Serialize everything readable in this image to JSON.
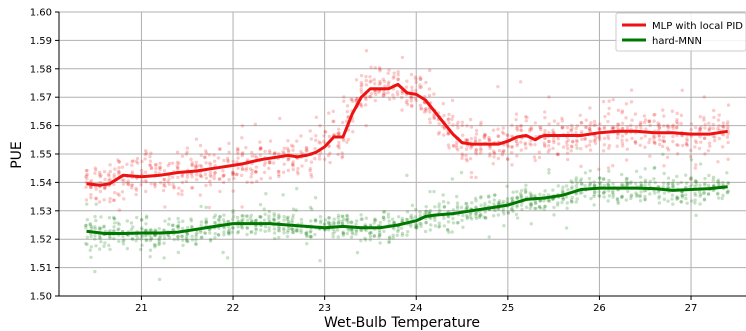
{
  "chart_data": {
    "type": "line",
    "xlabel": "Wet-Bulb Temperature",
    "ylabel": "PUE",
    "xlim": [
      20.1,
      27.6
    ],
    "ylim": [
      1.5,
      1.6
    ],
    "xticks": [
      21,
      22,
      23,
      24,
      25,
      26,
      27
    ],
    "yticks": [
      1.5,
      1.51,
      1.52,
      1.53,
      1.54,
      1.55,
      1.56,
      1.57,
      1.58,
      1.59,
      1.6
    ],
    "xtick_labels": [
      "21",
      "22",
      "23",
      "24",
      "25",
      "26",
      "27"
    ],
    "ytick_labels": [
      "1.50",
      "1.51",
      "1.52",
      "1.53",
      "1.54",
      "1.55",
      "1.56",
      "1.57",
      "1.58",
      "1.59",
      "1.60"
    ],
    "grid": true,
    "legend_position": "top-right",
    "series": [
      {
        "name": "MLP with local PID",
        "color": "#ee1111",
        "x": [
          20.4,
          20.55,
          20.65,
          20.8,
          21.0,
          21.2,
          21.4,
          21.6,
          21.8,
          22.0,
          22.1,
          22.3,
          22.5,
          22.6,
          22.7,
          22.8,
          22.9,
          23.0,
          23.1,
          23.2,
          23.3,
          23.4,
          23.5,
          23.6,
          23.7,
          23.8,
          23.9,
          24.0,
          24.1,
          24.2,
          24.3,
          24.4,
          24.5,
          24.6,
          24.7,
          24.8,
          24.9,
          25.0,
          25.1,
          25.2,
          25.3,
          25.35,
          25.4,
          25.5,
          25.6,
          25.8,
          26.0,
          26.2,
          26.4,
          26.6,
          26.8,
          27.0,
          27.2,
          27.4
        ],
        "y": [
          1.5395,
          1.539,
          1.5395,
          1.5425,
          1.542,
          1.5425,
          1.5435,
          1.544,
          1.545,
          1.546,
          1.5465,
          1.548,
          1.549,
          1.5495,
          1.549,
          1.5495,
          1.5505,
          1.5525,
          1.556,
          1.556,
          1.564,
          1.57,
          1.573,
          1.573,
          1.573,
          1.5745,
          1.5715,
          1.571,
          1.569,
          1.565,
          1.561,
          1.557,
          1.554,
          1.5535,
          1.5535,
          1.5535,
          1.5535,
          1.5545,
          1.556,
          1.5565,
          1.555,
          1.556,
          1.5565,
          1.5565,
          1.5565,
          1.5565,
          1.5575,
          1.558,
          1.558,
          1.5575,
          1.5575,
          1.557,
          1.557,
          1.558
        ]
      },
      {
        "name": "hard-MNN",
        "color": "#007700",
        "x": [
          20.4,
          20.6,
          20.8,
          21.0,
          21.2,
          21.4,
          21.6,
          21.8,
          22.0,
          22.2,
          22.4,
          22.6,
          22.8,
          23.0,
          23.2,
          23.4,
          23.6,
          23.8,
          24.0,
          24.1,
          24.2,
          24.4,
          24.6,
          24.8,
          25.0,
          25.2,
          25.4,
          25.6,
          25.8,
          26.0,
          26.2,
          26.4,
          26.6,
          26.8,
          27.0,
          27.2,
          27.4
        ],
        "y": [
          1.5228,
          1.522,
          1.522,
          1.5222,
          1.5222,
          1.5225,
          1.5235,
          1.5245,
          1.5255,
          1.5255,
          1.5255,
          1.525,
          1.5245,
          1.524,
          1.5245,
          1.524,
          1.524,
          1.525,
          1.5265,
          1.528,
          1.5285,
          1.529,
          1.53,
          1.531,
          1.532,
          1.534,
          1.5345,
          1.5355,
          1.5375,
          1.538,
          1.538,
          1.538,
          1.5378,
          1.5372,
          1.5375,
          1.5378,
          1.5385
        ]
      }
    ]
  }
}
